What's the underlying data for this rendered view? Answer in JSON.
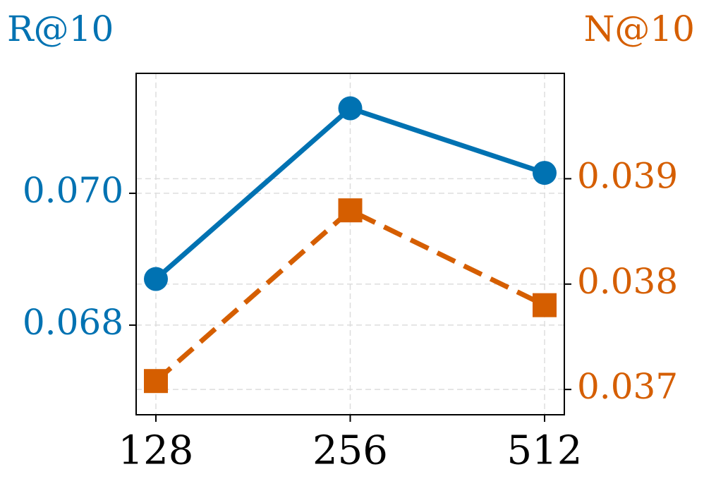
{
  "chart_data": {
    "type": "line",
    "y_label": "R@10",
    "y2_label": "N@10",
    "categories": [
      "128",
      "256",
      "512"
    ],
    "series": [
      {
        "name": "R@10",
        "color": "#0072b2",
        "values": [
          0.0687,
          0.07129,
          0.07031
        ],
        "marker": "circle",
        "linestyle": "solid"
      },
      {
        "name": "N@10",
        "color": "#d55e00",
        "values": [
          0.03708,
          0.0387,
          0.0378
        ],
        "axis": "y2",
        "marker": "square",
        "linestyle": "dashed"
      }
    ],
    "ylim": [
      0.06664,
      0.07182
    ],
    "yticks": [
      {
        "value": 0.068,
        "label": "0.068"
      },
      {
        "value": 0.07,
        "label": "0.070"
      }
    ],
    "y2lim": [
      0.03676,
      0.04
    ],
    "y2ticks": [
      0.037,
      0.038,
      0.039
    ],
    "grid": true
  }
}
